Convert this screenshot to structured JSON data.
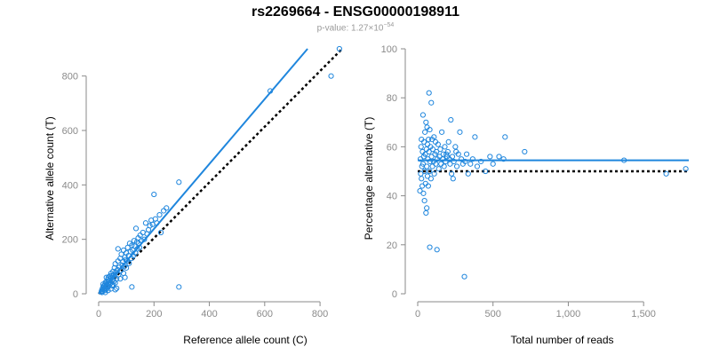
{
  "title": "rs2269664 - ENSG00000198911",
  "pvalue": {
    "prefix": "p-value: 1.27×10",
    "exponent": "−54"
  },
  "colors": {
    "points": "#1f86dd",
    "fit": "#1f86dd",
    "reference": "#000000",
    "axis": "#8a8a8a"
  },
  "chart_data": [
    {
      "type": "scatter",
      "xlabel": "Reference allele count (C)",
      "ylabel": "Alternative allele count (T)",
      "xlim": [
        0,
        880
      ],
      "ylim": [
        0,
        900
      ],
      "xticks": [
        0,
        200,
        400,
        600,
        800
      ],
      "yticks": [
        0,
        200,
        400,
        600,
        800
      ],
      "xtick_labels": [
        "0",
        "200",
        "400",
        "600",
        "800"
      ],
      "ytick_labels": [
        "0",
        "200",
        "400",
        "600",
        "800"
      ],
      "fit_line": {
        "x": [
          0,
          755
        ],
        "y": [
          0,
          900
        ]
      },
      "reference_line": {
        "x": [
          0,
          880
        ],
        "y": [
          0,
          900
        ]
      },
      "points": [
        [
          10,
          8
        ],
        [
          12,
          15
        ],
        [
          14,
          10
        ],
        [
          15,
          22
        ],
        [
          17,
          14
        ],
        [
          18,
          27
        ],
        [
          20,
          18
        ],
        [
          20,
          30
        ],
        [
          22,
          12
        ],
        [
          23,
          35
        ],
        [
          25,
          20
        ],
        [
          25,
          42
        ],
        [
          27,
          28
        ],
        [
          28,
          18
        ],
        [
          30,
          45
        ],
        [
          30,
          33
        ],
        [
          32,
          25
        ],
        [
          33,
          52
        ],
        [
          35,
          38
        ],
        [
          35,
          60
        ],
        [
          36,
          28
        ],
        [
          38,
          48
        ],
        [
          40,
          35
        ],
        [
          40,
          65
        ],
        [
          42,
          55
        ],
        [
          45,
          40
        ],
        [
          45,
          75
        ],
        [
          47,
          58
        ],
        [
          48,
          30
        ],
        [
          50,
          68
        ],
        [
          50,
          50
        ],
        [
          52,
          82
        ],
        [
          55,
          45
        ],
        [
          55,
          70
        ],
        [
          57,
          95
        ],
        [
          58,
          62
        ],
        [
          60,
          40
        ],
        [
          60,
          110
        ],
        [
          62,
          78
        ],
        [
          65,
          20
        ],
        [
          65,
          55
        ],
        [
          68,
          88
        ],
        [
          70,
          165
        ],
        [
          70,
          120
        ],
        [
          72,
          70
        ],
        [
          75,
          98
        ],
        [
          78,
          130
        ],
        [
          80,
          85
        ],
        [
          82,
          145
        ],
        [
          85,
          105
        ],
        [
          88,
          118
        ],
        [
          90,
          75
        ],
        [
          90,
          160
        ],
        [
          93,
          100
        ],
        [
          95,
          135
        ],
        [
          98,
          125
        ],
        [
          100,
          150
        ],
        [
          100,
          95
        ],
        [
          105,
          170
        ],
        [
          108,
          140
        ],
        [
          110,
          112
        ],
        [
          112,
          185
        ],
        [
          115,
          155
        ],
        [
          118,
          130
        ],
        [
          120,
          25
        ],
        [
          120,
          178
        ],
        [
          123,
          160
        ],
        [
          125,
          140
        ],
        [
          128,
          195
        ],
        [
          130,
          175
        ],
        [
          133,
          150
        ],
        [
          135,
          240
        ],
        [
          138,
          190
        ],
        [
          140,
          165
        ],
        [
          143,
          205
        ],
        [
          145,
          185
        ],
        [
          148,
          170
        ],
        [
          150,
          215
        ],
        [
          155,
          195
        ],
        [
          160,
          225
        ],
        [
          165,
          200
        ],
        [
          170,
          260
        ],
        [
          175,
          220
        ],
        [
          180,
          235
        ],
        [
          185,
          250
        ],
        [
          190,
          270
        ],
        [
          195,
          255
        ],
        [
          200,
          365
        ],
        [
          205,
          275
        ],
        [
          210,
          260
        ],
        [
          220,
          290
        ],
        [
          225,
          225
        ],
        [
          235,
          305
        ],
        [
          245,
          315
        ],
        [
          290,
          25
        ],
        [
          290,
          410
        ],
        [
          620,
          745
        ],
        [
          840,
          800
        ],
        [
          870,
          900
        ],
        [
          12,
          5
        ],
        [
          16,
          35
        ],
        [
          24,
          5
        ],
        [
          28,
          60
        ],
        [
          34,
          12
        ],
        [
          44,
          18
        ],
        [
          52,
          33
        ],
        [
          60,
          15
        ],
        [
          78,
          55
        ],
        [
          95,
          60
        ],
        [
          102,
          120
        ]
      ]
    },
    {
      "type": "scatter",
      "xlabel": "Total number of reads",
      "ylabel": "Percentage alternative (T)",
      "xlim": [
        0,
        1800
      ],
      "ylim": [
        0,
        100
      ],
      "xticks": [
        0,
        500,
        1000,
        1500
      ],
      "yticks": [
        0,
        20,
        40,
        60,
        80,
        100
      ],
      "xtick_labels": [
        "0",
        "500",
        "1,000",
        "1,500"
      ],
      "ytick_labels": [
        "0",
        "20",
        "40",
        "60",
        "80",
        "100"
      ],
      "fit_line": {
        "x": [
          0,
          1800
        ],
        "y": [
          54.5,
          54.5
        ]
      },
      "reference_line": {
        "x": [
          0,
          1800
        ],
        "y": [
          50,
          50
        ]
      },
      "points": [
        [
          15,
          42
        ],
        [
          18,
          55
        ],
        [
          20,
          49
        ],
        [
          22,
          60
        ],
        [
          25,
          47
        ],
        [
          25,
          63
        ],
        [
          28,
          52
        ],
        [
          30,
          44
        ],
        [
          32,
          58
        ],
        [
          35,
          53
        ],
        [
          35,
          73
        ],
        [
          38,
          41
        ],
        [
          40,
          56
        ],
        [
          42,
          62
        ],
        [
          45,
          50
        ],
        [
          45,
          38
        ],
        [
          48,
          66
        ],
        [
          50,
          57
        ],
        [
          52,
          45
        ],
        [
          55,
          70
        ],
        [
          55,
          33
        ],
        [
          58,
          59
        ],
        [
          60,
          52
        ],
        [
          62,
          68
        ],
        [
          65,
          48
        ],
        [
          65,
          61
        ],
        [
          68,
          55
        ],
        [
          70,
          44
        ],
        [
          72,
          63
        ],
        [
          75,
          58
        ],
        [
          75,
          82
        ],
        [
          78,
          50
        ],
        [
          80,
          19
        ],
        [
          80,
          67
        ],
        [
          82,
          54
        ],
        [
          85,
          60
        ],
        [
          88,
          47
        ],
        [
          90,
          78
        ],
        [
          92,
          56
        ],
        [
          95,
          63
        ],
        [
          98,
          52
        ],
        [
          100,
          59
        ],
        [
          105,
          54
        ],
        [
          108,
          64
        ],
        [
          110,
          49
        ],
        [
          115,
          57
        ],
        [
          118,
          62
        ],
        [
          120,
          53
        ],
        [
          125,
          58
        ],
        [
          128,
          18
        ],
        [
          130,
          55
        ],
        [
          135,
          61
        ],
        [
          140,
          51
        ],
        [
          145,
          56
        ],
        [
          150,
          59
        ],
        [
          155,
          53
        ],
        [
          160,
          66
        ],
        [
          165,
          55
        ],
        [
          170,
          57
        ],
        [
          175,
          52
        ],
        [
          180,
          60
        ],
        [
          185,
          54
        ],
        [
          190,
          57
        ],
        [
          195,
          56
        ],
        [
          200,
          58
        ],
        [
          205,
          62
        ],
        [
          210,
          55
        ],
        [
          215,
          53
        ],
        [
          220,
          71
        ],
        [
          225,
          49
        ],
        [
          230,
          56
        ],
        [
          235,
          47
        ],
        [
          240,
          54
        ],
        [
          250,
          60
        ],
        [
          255,
          58
        ],
        [
          260,
          52
        ],
        [
          270,
          57
        ],
        [
          280,
          66
        ],
        [
          290,
          55
        ],
        [
          300,
          53
        ],
        [
          310,
          7
        ],
        [
          315,
          54
        ],
        [
          325,
          57
        ],
        [
          335,
          49
        ],
        [
          350,
          53
        ],
        [
          365,
          55
        ],
        [
          380,
          64
        ],
        [
          395,
          52
        ],
        [
          420,
          54
        ],
        [
          450,
          50
        ],
        [
          480,
          56
        ],
        [
          500,
          53
        ],
        [
          540,
          56
        ],
        [
          570,
          55
        ],
        [
          580,
          64
        ],
        [
          710,
          58
        ],
        [
          1370,
          54.5
        ],
        [
          1650,
          49
        ],
        [
          1780,
          51
        ],
        [
          60,
          35
        ]
      ]
    }
  ]
}
